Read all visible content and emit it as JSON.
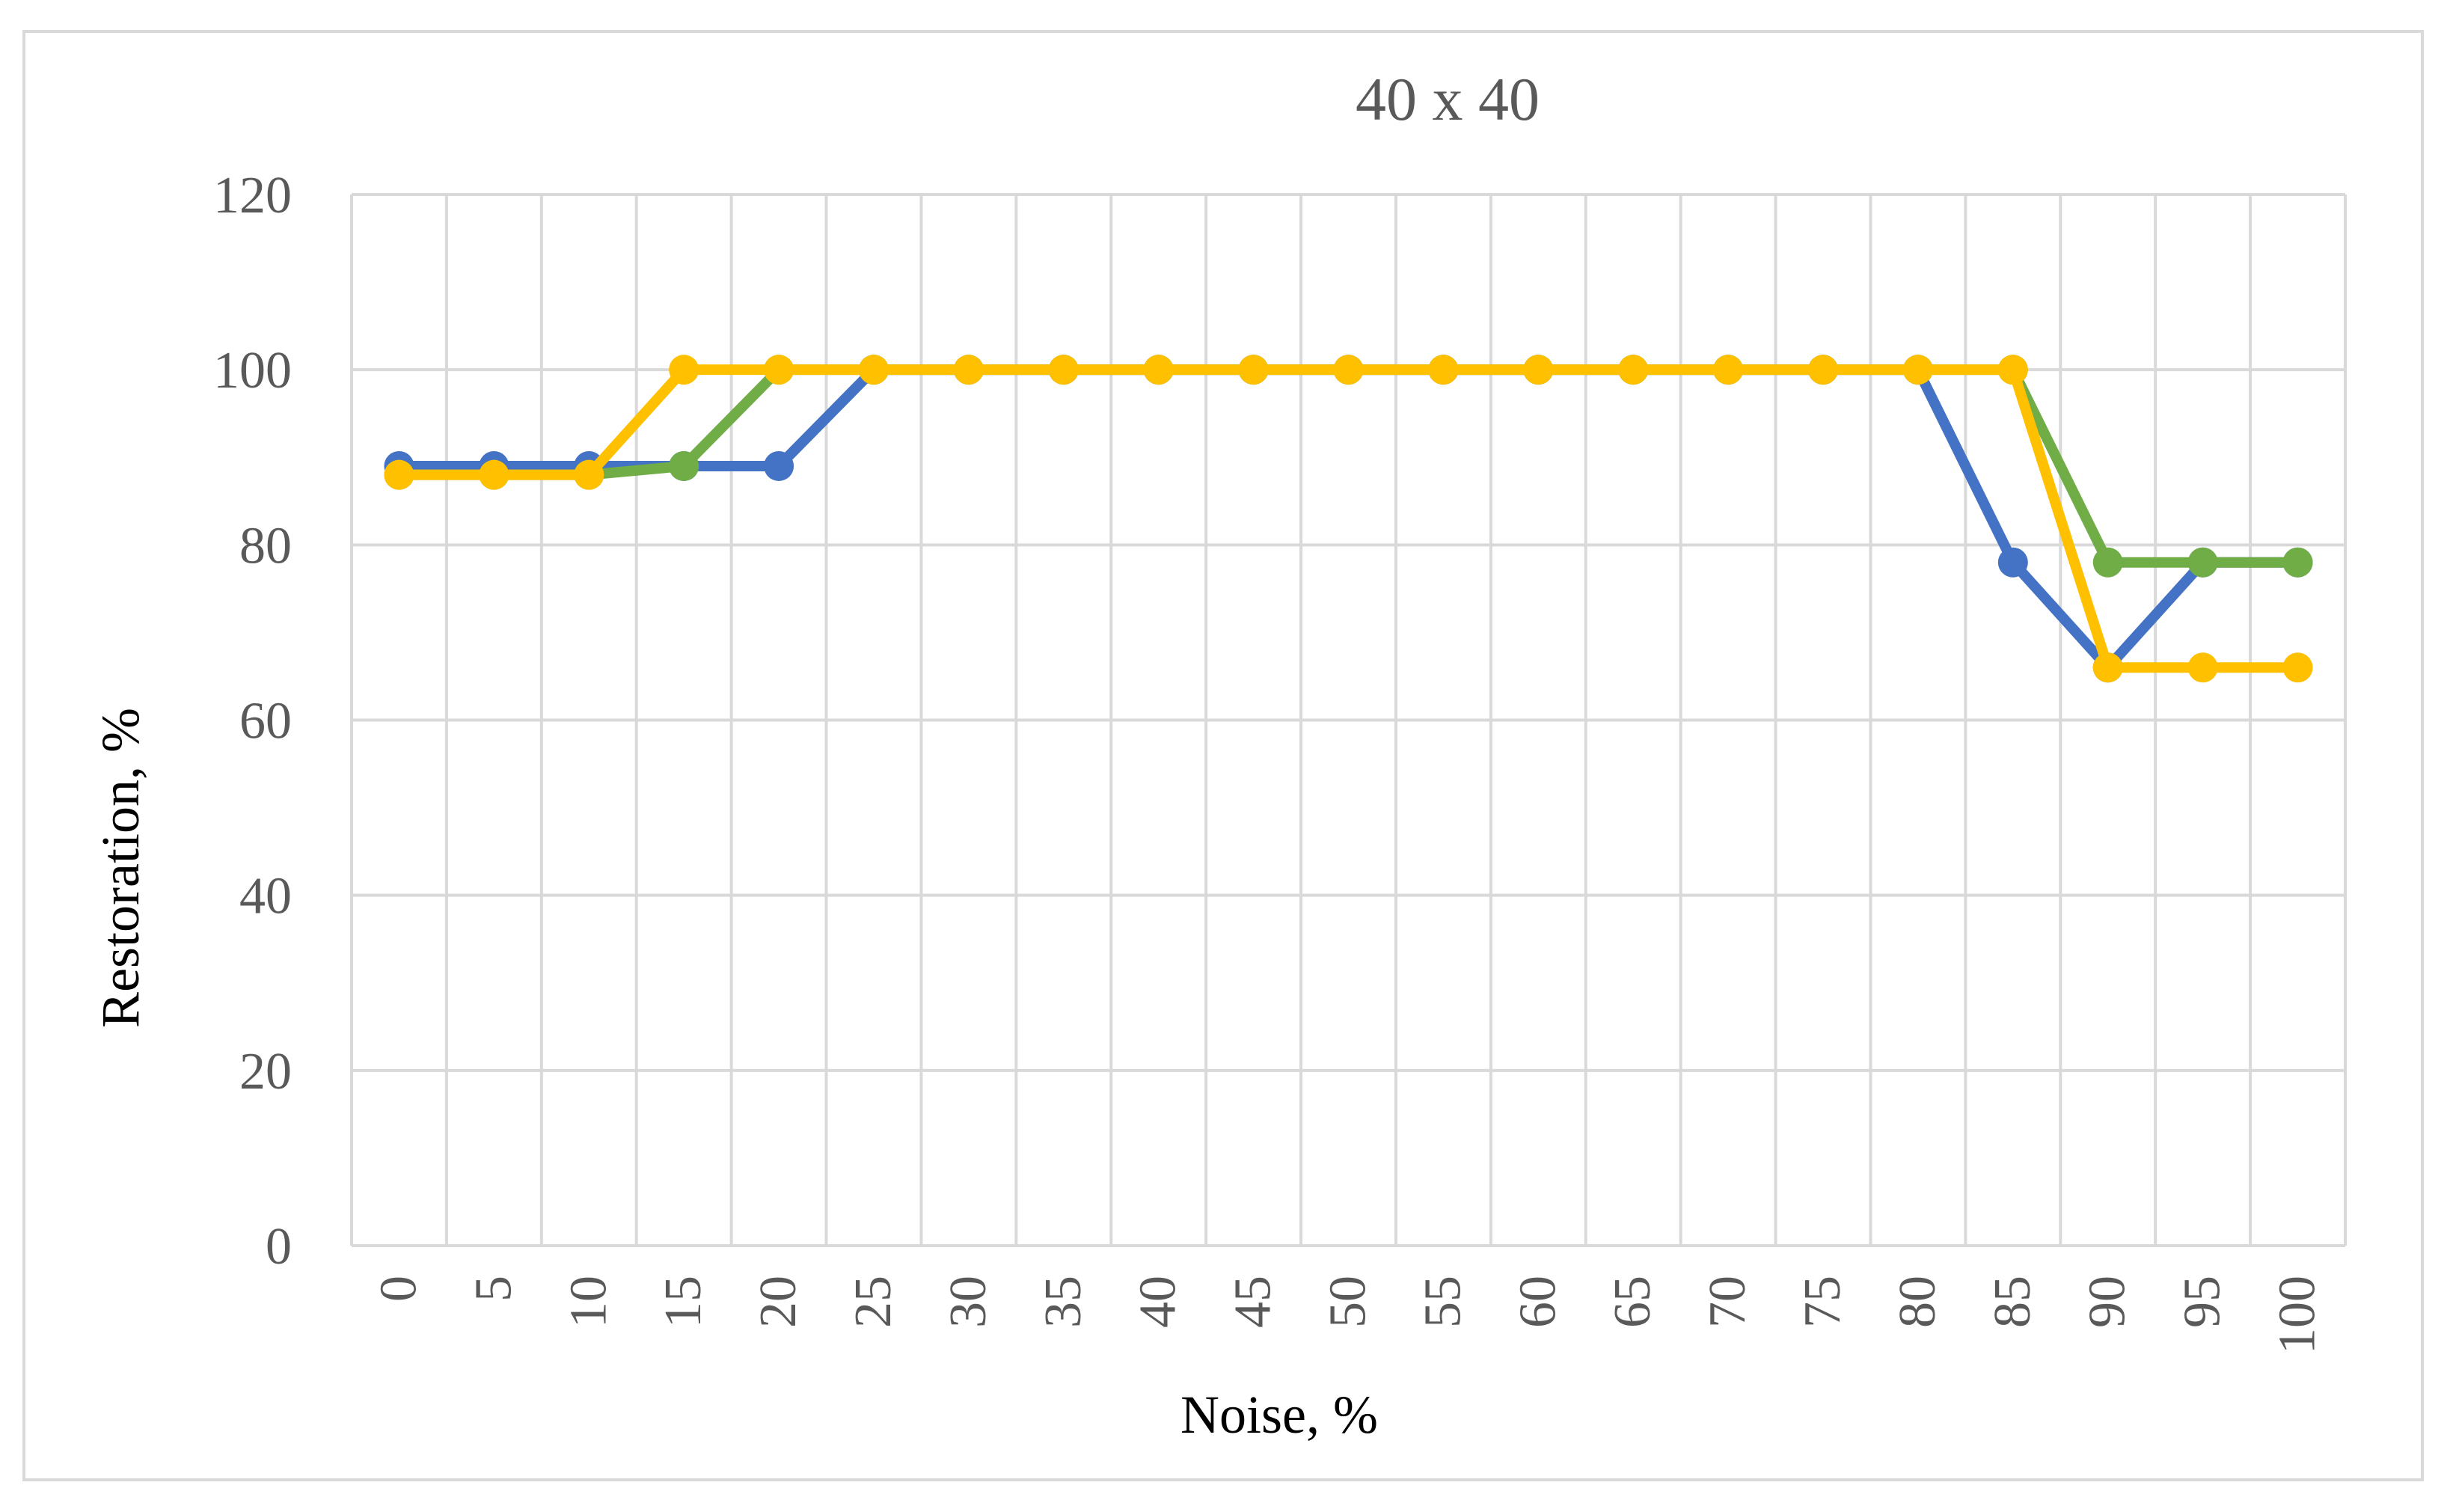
{
  "chart_data": {
    "type": "line",
    "title": "40 x 40",
    "xlabel": "Noise, %",
    "ylabel": "Restoration, %",
    "ylim": [
      0,
      120
    ],
    "yticks": [
      0,
      20,
      40,
      60,
      80,
      100,
      120
    ],
    "grid": true,
    "legend": "none",
    "x": [
      0,
      5,
      10,
      15,
      20,
      25,
      30,
      35,
      40,
      45,
      50,
      55,
      60,
      65,
      70,
      75,
      80,
      85,
      90,
      95,
      100
    ],
    "x_tick_labels": [
      "0",
      "5",
      "10",
      "15",
      "20",
      "25",
      "30",
      "35",
      "40",
      "45",
      "50",
      "55",
      "60",
      "65",
      "70",
      "75",
      "80",
      "85",
      "90",
      "95",
      "100"
    ],
    "series": [
      {
        "color": "#4472c4",
        "values": [
          89,
          89,
          89,
          89,
          89,
          100,
          100,
          100,
          100,
          100,
          100,
          100,
          100,
          100,
          100,
          100,
          100,
          78,
          66,
          78,
          78
        ]
      },
      {
        "color": "#70ad47",
        "values": [
          88,
          88,
          88,
          89,
          100,
          100,
          100,
          100,
          100,
          100,
          100,
          100,
          100,
          100,
          100,
          100,
          100,
          100,
          78,
          78,
          78
        ]
      },
      {
        "color": "#ffc000",
        "values": [
          88,
          88,
          88,
          100,
          100,
          100,
          100,
          100,
          100,
          100,
          100,
          100,
          100,
          100,
          100,
          100,
          100,
          100,
          66,
          66,
          66
        ]
      }
    ],
    "colors": {
      "grid": "#d9d9d9",
      "tick_text": "#595959",
      "title_text": "#595959",
      "axis_title_text": "#000000"
    }
  }
}
